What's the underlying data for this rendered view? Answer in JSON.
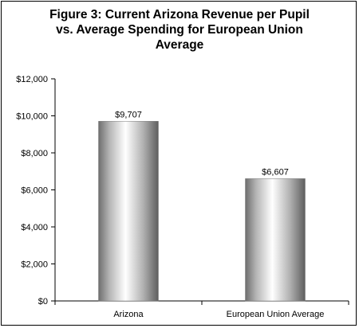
{
  "chart_data": {
    "type": "bar",
    "title_lines": [
      "Figure 3: Current Arizona Revenue per Pupil",
      "vs. Average Spending for European Union",
      "Average"
    ],
    "categories": [
      "Arizona",
      "European Union Average"
    ],
    "values": [
      9707,
      6607
    ],
    "data_labels": [
      "$9,707",
      "$6,607"
    ],
    "ylim": [
      0,
      12000
    ],
    "y_ticks": [
      0,
      2000,
      4000,
      6000,
      8000,
      10000,
      12000
    ],
    "y_tick_labels": [
      "$0",
      "$2,000",
      "$4,000",
      "$6,000",
      "$8,000",
      "$10,000",
      "$12,000"
    ],
    "grid": false,
    "legend": "none",
    "bar_fill": "cylinder-gradient-gray"
  }
}
